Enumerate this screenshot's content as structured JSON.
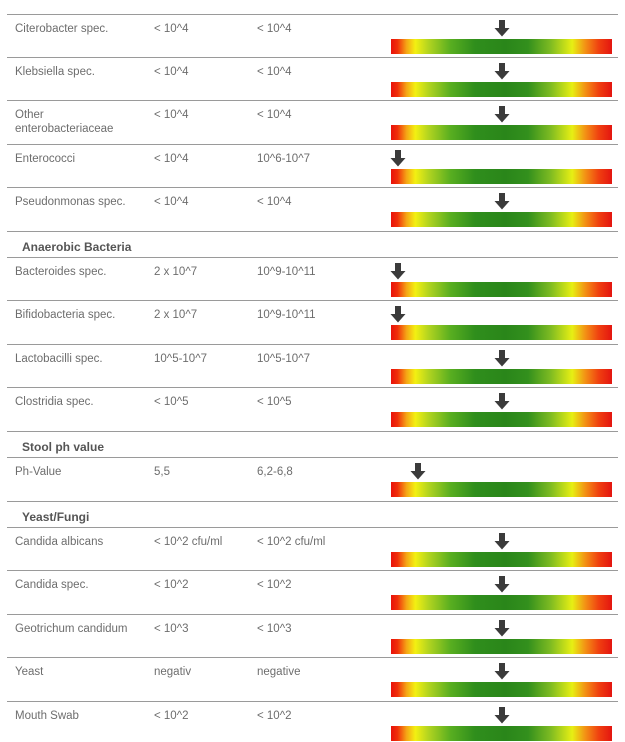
{
  "table": {
    "rows": [
      {
        "kind": "data",
        "name": "Citerobacter spec.",
        "value": "< 10^4",
        "reference": "< 10^4",
        "level": 0.5
      },
      {
        "kind": "data",
        "name": "Klebsiella spec.",
        "value": "< 10^4",
        "reference": "< 10^4",
        "level": 0.5
      },
      {
        "kind": "data",
        "name": "Other enterobacteriaceae",
        "value": "< 10^4",
        "reference": "< 10^4",
        "level": 0.5
      },
      {
        "kind": "data",
        "name": "Enterococci",
        "value": "< 10^4",
        "reference": "10^6-10^7",
        "level": 0.03
      },
      {
        "kind": "data",
        "name": "Pseudonmonas spec.",
        "value": "< 10^4",
        "reference": "< 10^4",
        "level": 0.5
      },
      {
        "kind": "section",
        "name": "Anaerobic Bacteria"
      },
      {
        "kind": "data",
        "name": "Bacteroides spec.",
        "value": "2 x 10^7",
        "reference": "10^9-10^11",
        "level": 0.03
      },
      {
        "kind": "data",
        "name": "Bifidobacteria spec.",
        "value": "2 x 10^7",
        "reference": "10^9-10^11",
        "level": 0.03
      },
      {
        "kind": "data",
        "name": "Lactobacilli spec.",
        "value": "10^5-10^7",
        "reference": "10^5-10^7",
        "level": 0.5
      },
      {
        "kind": "data",
        "name": "Clostridia spec.",
        "value": "< 10^5",
        "reference": "< 10^5",
        "level": 0.5
      },
      {
        "kind": "section",
        "name": "Stool ph value"
      },
      {
        "kind": "data",
        "name": "Ph-Value",
        "value": "5,5",
        "reference": "6,2-6,8",
        "level": 0.12
      },
      {
        "kind": "section",
        "name": "Yeast/Fungi"
      },
      {
        "kind": "data",
        "name": "Candida albicans",
        "value": "< 10^2 cfu/ml",
        "reference": "< 10^2 cfu/ml",
        "level": 0.5
      },
      {
        "kind": "data",
        "name": "Candida spec.",
        "value": "< 10^2",
        "reference": "< 10^2",
        "level": 0.5
      },
      {
        "kind": "data",
        "name": "Geotrichum candidum",
        "value": "< 10^3",
        "reference": "< 10^3",
        "level": 0.5
      },
      {
        "kind": "data",
        "name": "Yeast",
        "value": "negativ",
        "reference": "negative",
        "level": 0.5
      },
      {
        "kind": "data",
        "name": "Mouth Swab",
        "value": "< 10^2",
        "reference": "< 10^2",
        "level": 0.5
      }
    ]
  }
}
